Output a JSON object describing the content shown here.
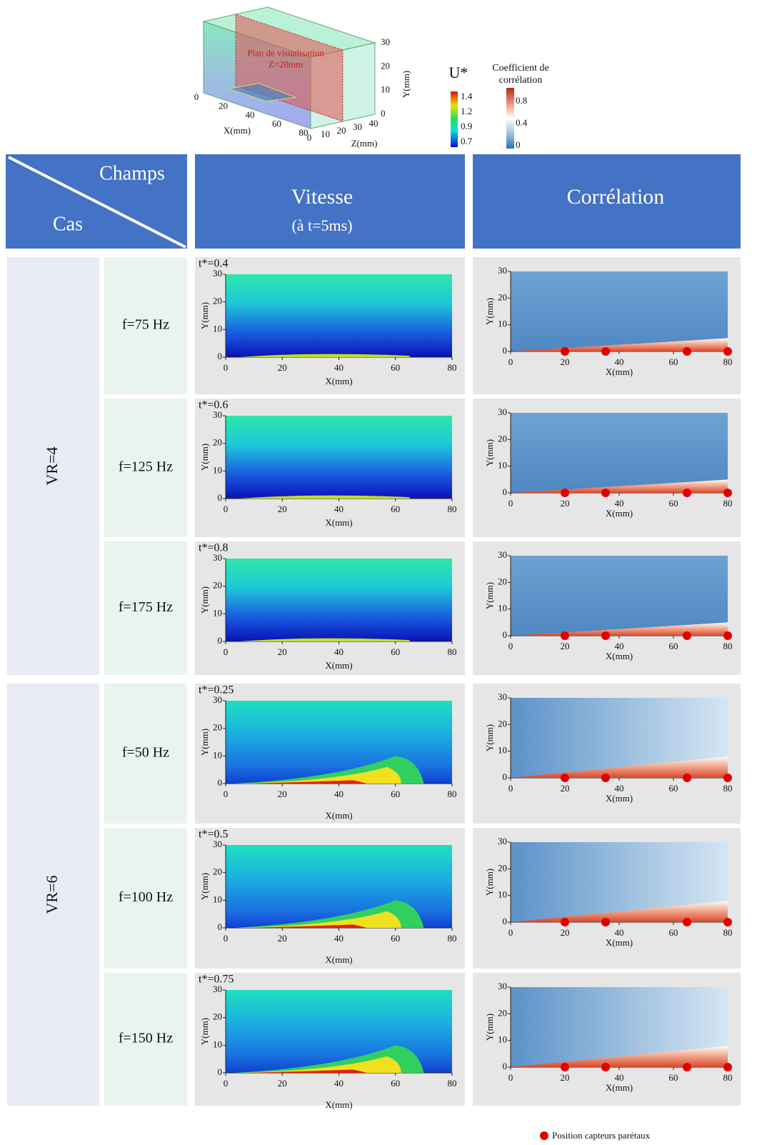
{
  "figure": {
    "view3d": {
      "plane_label": "Plan de visualisation",
      "plane_z": "Z=20mm",
      "x_label": "X(mm)",
      "y_label": "Y(mm)",
      "z_label": "Z(mm)",
      "x_ticks": [
        0,
        20,
        40,
        60,
        80
      ],
      "y_ticks": [
        0,
        10,
        20,
        30
      ],
      "z_ticks": [
        40,
        30,
        20,
        10,
        0
      ]
    },
    "legend_velocity": {
      "title": "U*",
      "ticks": [
        1.4,
        1.2,
        0.9,
        0.7
      ]
    },
    "legend_correlation": {
      "title_lines": [
        "Coefficient de",
        "corrélation"
      ],
      "ticks": [
        0.8,
        0.4,
        0
      ]
    },
    "table": {
      "corner_top": "Champs",
      "corner_bottom": "Cas",
      "velocity_header": "Vitesse",
      "velocity_subheader": "(à t=5ms)",
      "correlation_header": "Corrélation"
    },
    "plot_axes": {
      "x_label": "X(mm)",
      "y_label": "Y(mm)",
      "x_ticks": [
        0,
        20,
        40,
        60,
        80
      ],
      "y_ticks": [
        0,
        10,
        20,
        30
      ]
    },
    "groups": [
      {
        "label": "VR=4",
        "rows": [
          {
            "frequency": "f=75 Hz",
            "t_star": "t*=0.4"
          },
          {
            "frequency": "f=125 Hz",
            "t_star": "t*=0.6"
          },
          {
            "frequency": "f=175 Hz",
            "t_star": "t*=0.8"
          }
        ]
      },
      {
        "label": "VR=6",
        "rows": [
          {
            "frequency": "f=50 Hz",
            "t_star": "t*=0.25"
          },
          {
            "frequency": "f=100 Hz",
            "t_star": "t*=0.5"
          },
          {
            "frequency": "f=150 Hz",
            "t_star": "t*=0.75"
          }
        ]
      }
    ],
    "sensor_x": [
      20,
      35,
      65,
      80
    ],
    "sensor_legend": "Position capteurs parétaux"
  }
}
